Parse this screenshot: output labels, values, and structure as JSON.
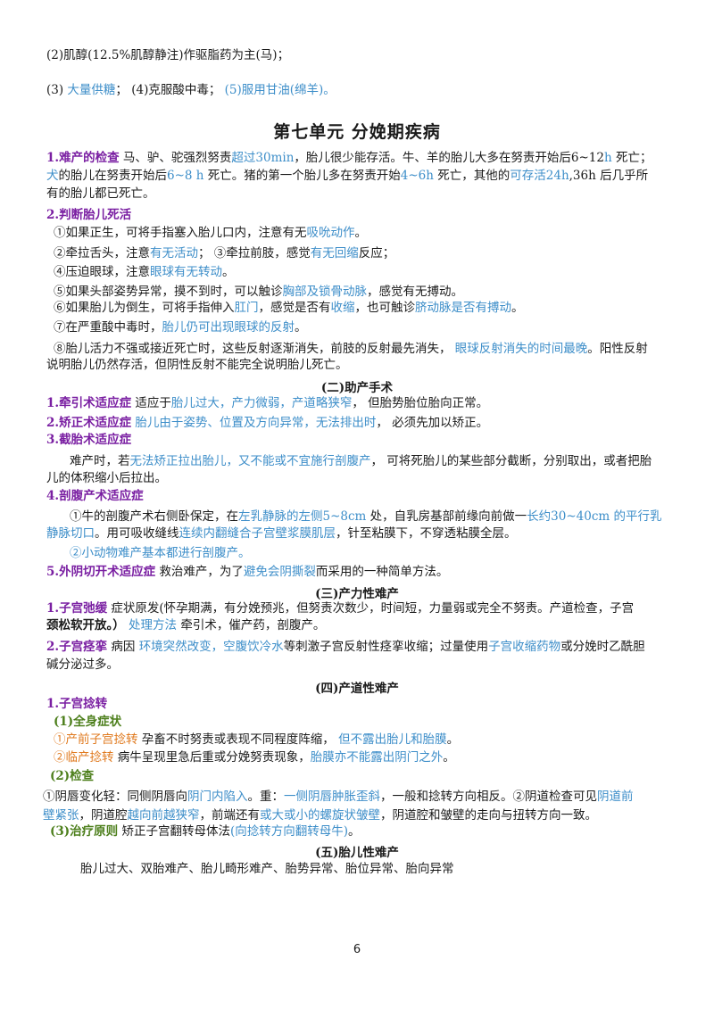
{
  "l01": "(2)肌醇(12.5%肌醇静注)作驱脂药为主(马)；",
  "l02a": "(3) ",
  "l02b": "大量供糖",
  "l02c": "；  (4)克服酸中毒；    ",
  "l02d": "(5)服用甘油(绵羊)。",
  "title": "第七单元    分娩期疾病",
  "s1a": "1.难产的检查",
  "s1b": " 马、驴、驼强烈努责",
  "s1c": "超过30min",
  "s1d": "，胎儿很少能存活。牛、羊的胎儿大多在努责开始后6~12",
  "s1e": "h",
  "s1f": " 死亡；",
  "s1g": "犬",
  "s1h": "的胎儿在努责开始后",
  "s1i": "6~8 h",
  "s1j": " 死亡。猪的第一个胎儿多在努责开始",
  "s1k": "4~6h",
  "s1l": " 死亡，其他的",
  "s1m": "可存活24h",
  "s1n": ",36h  后几乎所",
  "s1o": "有的胎儿都已死亡。",
  "s2": "2.判断胎儿死活",
  "s2a1": "①如果正生，可将手指塞入胎儿口内，注意有无",
  "s2a2": "吸吮动作",
  "s2a3": "。",
  "s2b1": "②牵拉舌头，注意",
  "s2b2": "有无活动",
  "s2b3": "；  ③牵拉前肢，感觉",
  "s2b4": "有无回缩",
  "s2b5": "反应；",
  "s2c1": "④压迫眼球，注意",
  "s2c2": "眼球有无转动",
  "s2c3": "。",
  "s2d1": "⑤如果头部姿势异常，摸不到时，可以触诊",
  "s2d2": "胸部及锁骨动脉",
  "s2d3": "，感觉有无搏动。",
  "s2e1": "⑥如果胎儿为倒生，可将手指伸入",
  "s2e2": "肛门",
  "s2e3": "，感觉是否有",
  "s2e4": "收缩",
  "s2e5": "，也可触诊",
  "s2e6": "脐动脉是否有搏动",
  "s2e7": "。",
  "s2f1": "⑦在严重酸中毒时，",
  "s2f2": "胎儿仍可出现眼球的反射",
  "s2f3": "。",
  "s2g1": "⑧胎儿活力不强或接近死亡时，这些反射逐渐消失，前肢的反射最先消失，   ",
  "s2g2": "眼球反射消失的时间最晚",
  "s2g3": "。阳性反射",
  "s2h": "说明胎儿仍然存活，但阴性反射不能完全说明胎儿死亡。",
  "h2": "(二)助产手术",
  "s3a": "1.牵引术适应症",
  "s3b": "  适应于",
  "s3c": "胎儿过大，产力微弱，产道略狭窄",
  "s3d": "，  但胎势胎位胎向正常。",
  "s4a": "2.矫正术适应症",
  "s4b": " ",
  "s4c": "胎儿由于姿势、位置及方向异常，无法排出时",
  "s4d": "，   必须先加以矫正。",
  "s5": "3.截胎术适应症",
  "s5a1": "难产时，若",
  "s5a2": "无法矫正拉出胎儿，又不能或不宜施行剖腹产",
  "s5a3": "，  可将死胎儿的某些部分截断，分别取出，或者把胎",
  "s5b": "儿的体积缩小后拉出。",
  "s6": "4.剖腹产术适应症",
  "s6a1": "①牛的剖腹产术右侧卧保定，在",
  "s6a2": "左乳静脉的左侧5~8cm",
  "s6a3": " 处，自乳房基部前缘向前做一",
  "s6a4": "长约30~40cm 的平行乳",
  "s6b1": "静脉切口",
  "s6b2": "。用可吸收缝线",
  "s6b3": "连续内翻缝合子宫壁浆膜肌层",
  "s6b4": "，针至粘膜下，不穿透粘膜全层。",
  "s6c": "②小动物难产基本都进行剖腹产。",
  "s7a": "5.外阴切开术适应症",
  "s7b": "  救治难产，为了",
  "s7c": "避免会阴撕裂",
  "s7d": "而采用的一种简单方法。",
  "h3": "(三)产力性难产",
  "s8a": "1.子宫弛缓",
  "s8b": "  症状原发(怀孕期满，有分娩预兆，但努责次数少，时间短，力量弱或完全不努责。产道检查，子宫",
  "s8c": "颈松软开放。）",
  "s8d": "  ",
  "s8e": "处理方法",
  "s8f": " 牵引术，催产药，剖腹产。",
  "s9a": "2.子宫痉挛",
  "s9b": "  病因  ",
  "s9c": "环境突然改变，空腹饮冷水",
  "s9d": "等刺激子宫反射性痉挛收缩；过量使用",
  "s9e": "子宫收缩药物",
  "s9f": "或分娩时乙酰胆",
  "s9g": "碱分泌过多。",
  "h4": "(四)产道性难产",
  "s10": "1.子宫捻转",
  "s10a": "(1)全身症状",
  "s10b1": "①产前子宫捻转",
  "s10b2": " 孕畜不时努责或表现不同程度阵缩，  ",
  "s10b3": "但不露出胎儿和胎膜",
  "s10b4": "。",
  "s10c1": "②临产捻转",
  "s10c2": " 病牛呈现里急后重或分娩努责现象，",
  "s10c3": "胎膜亦不能露出阴门之外",
  "s10c4": "。",
  "s10d": "(2)检查",
  "s10e1": "①阴唇变化轻：同侧阴唇向",
  "s10e2": "阴门内陷入",
  "s10e3": "。重：",
  "s10e4": "一侧阴唇肿胀歪斜",
  "s10e5": "，一般和捻转方向相反。②阴道检查可见",
  "s10e6": "阴道前",
  "s10f1": "壁紧张",
  "s10f2": "，阴道腔",
  "s10f3": "越向前越狭窄",
  "s10f4": "，前端还有",
  "s10f5": "或大或小的螺旋状皱壁",
  "s10f6": "，阴道腔和皱壁的走向与扭转方向一致。",
  "s10g1": "(3)治疗原则",
  "s10g2": "  矫正子宫翻转母体法",
  "s10g3": "(向捻转方向翻转母牛)",
  "s10g4": "。",
  "h5": "(五)胎儿性难产",
  "s11": "胎儿过大、双胎难产、胎儿畸形难产、胎势异常、胎位异常、胎向异常",
  "page": "6"
}
